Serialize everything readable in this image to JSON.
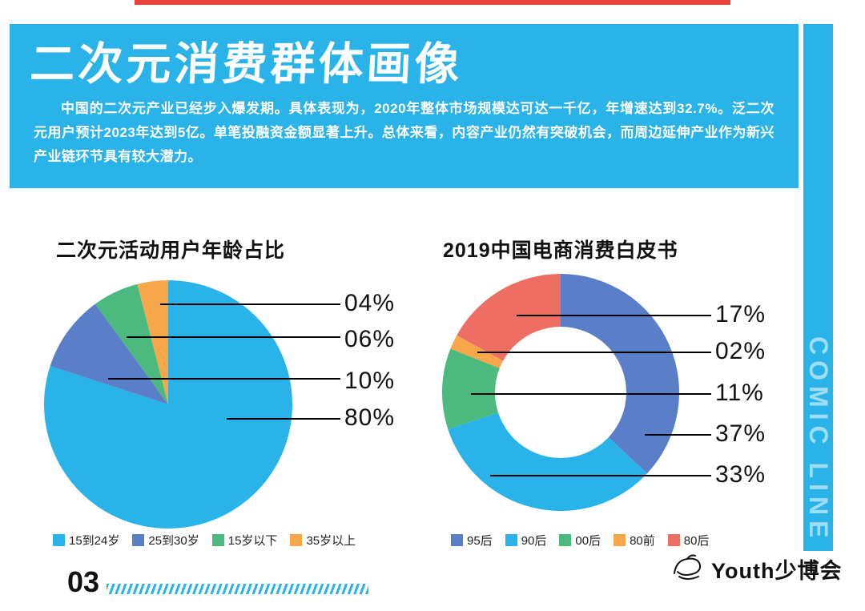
{
  "accent": {
    "top_line_color": "#e8433b",
    "brand_cyan": "#29b3e9"
  },
  "header": {
    "title": "二次元消费群体画像",
    "description": "中国的二次元产业已经步入爆发期。具体表现为，2020年整体市场规模达可达一千亿，年增速达到32.7%。泛二次元用户预计2023年达到5亿。单笔投融资金额显著上升。总体来看，内容产业仍然有突破机会，而周边延伸产业作为新兴产业链环节具有较大潜力。"
  },
  "side_banner": {
    "text": "COMIC LINE"
  },
  "chart_data": [
    {
      "type": "pie",
      "title": "二次元活动用户年龄占比",
      "categories": [
        "15到24岁",
        "25到30岁",
        "15岁以下",
        "35岁以上"
      ],
      "values": [
        80,
        10,
        6,
        4
      ],
      "colors": [
        "#29b3e9",
        "#5b7ec8",
        "#4cba7f",
        "#f7a64a"
      ],
      "callouts": [
        "04%",
        "06%",
        "10%",
        "80%"
      ],
      "legend_position": "bottom"
    },
    {
      "type": "donut",
      "title": "2019中国电商消费白皮书",
      "categories": [
        "95后",
        "90后",
        "00后",
        "80前",
        "80后"
      ],
      "values": [
        37,
        33,
        11,
        2,
        17
      ],
      "colors": [
        "#5b7ec8",
        "#29b3e9",
        "#4cba7f",
        "#f7a64a",
        "#ee6e64"
      ],
      "callouts": [
        "17%",
        "02%",
        "11%",
        "37%",
        "33%"
      ],
      "legend_position": "bottom"
    }
  ],
  "footer": {
    "page_number": "03",
    "logo_text": "Youth少博会"
  }
}
